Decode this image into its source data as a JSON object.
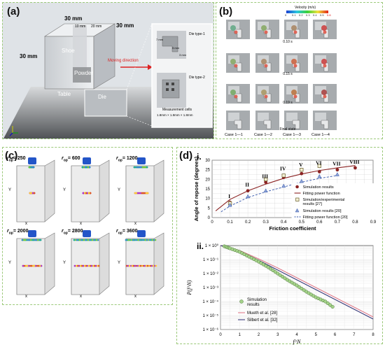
{
  "panel_a": {
    "label": "(a)",
    "dim_top": "30 mm",
    "dim_side": "30 mm",
    "dim_right": "30 mm",
    "dim_inner_a": "10 mm",
    "dim_inner_b": "20 mm",
    "shoe": "Shoe",
    "powder": "Powder",
    "table": "Table",
    "die": "Die",
    "moving": "Moving direction",
    "die_type1": "Die type-1",
    "die_type2": "Die type-2",
    "measurement": "Measurement cells",
    "measurement_size": "1.8mm × 1.8mm × 1.8mm",
    "inset_7mm": "7 mm",
    "inset_5mm": "5 mm",
    "inset_3mm": "3 mm"
  },
  "panel_b": {
    "label": "(b)",
    "colorbar_title": "Velocity (m/s)",
    "colorbar_ticks": [
      "0",
      "0.1",
      "0.2",
      "0.3",
      "0.4",
      "0.5",
      "0.6"
    ],
    "time_labels": [
      "0.10 s",
      "0.15 s",
      "0.19 s",
      "Final state"
    ],
    "cases": [
      "Case 1—1",
      "Case 1—2",
      "Case 1—3",
      "Case 1—4"
    ]
  },
  "panel_c": {
    "label": "(c)",
    "frames": [
      "r_op = 250",
      "r_op = 600",
      "r_op = 1200",
      "r_op = 2000",
      "r_op = 2800",
      "r_op = 3600"
    ],
    "frame_vals": [
      "250",
      "600",
      "1200",
      "2000",
      "2800",
      "3600"
    ],
    "axis_x": "x",
    "axis_y": "Y",
    "axis_z": "z"
  },
  "panel_d": {
    "label": "(d)",
    "sub_i": "i.",
    "sub_ii": "ii."
  },
  "chart_data": [
    {
      "type": "scatter",
      "xlabel": "Friction coefficient",
      "ylabel": "Angle of repose (degrees)",
      "xlim": [
        0,
        0.9
      ],
      "ylim": [
        0,
        30
      ],
      "xticks": [
        "0",
        "0.1",
        "0.2",
        "0.3",
        "0.4",
        "0.5",
        "0.6",
        "0.7",
        "0.8",
        "0.9"
      ],
      "yticks": [
        "0",
        "5",
        "10",
        "15",
        "20",
        "25",
        "30"
      ],
      "roman_labels": [
        "I",
        "II",
        "III",
        "IV",
        "V",
        "VI",
        "VII",
        "VIII"
      ],
      "series": [
        {
          "name": "Simulation results",
          "x": [
            0.1,
            0.2,
            0.3,
            0.4,
            0.5,
            0.6,
            0.7,
            0.8
          ],
          "y": [
            8,
            14,
            18.5,
            21,
            23,
            24,
            25,
            26
          ]
        },
        {
          "name": "Fitting power function",
          "x": [
            0.02,
            0.1,
            0.2,
            0.3,
            0.4,
            0.5,
            0.6,
            0.7,
            0.8
          ],
          "y": [
            3.5,
            9.5,
            14,
            17.5,
            20.5,
            22.8,
            24.6,
            26,
            27.2
          ]
        },
        {
          "name": "Simulation/experimental results [27]",
          "x": [
            0.1,
            0.3,
            0.4,
            0.5,
            0.6
          ],
          "y": [
            7.5,
            20,
            22,
            25,
            27
          ]
        },
        {
          "name": "Simulation results [20]",
          "x": [
            0.1,
            0.2,
            0.3,
            0.4,
            0.5,
            0.6,
            0.7
          ],
          "y": [
            6.5,
            11,
            14,
            16.5,
            19,
            21.5,
            22.5
          ]
        },
        {
          "name": "Fitting power function [20]",
          "x": [
            0.05,
            0.1,
            0.2,
            0.3,
            0.4,
            0.5,
            0.6,
            0.7
          ],
          "y": [
            3,
            6,
            10.5,
            13.5,
            16,
            18.5,
            20.5,
            22
          ]
        }
      ]
    },
    {
      "type": "scatter",
      "xlabel": "f^N",
      "ylabel": "P(f^N)",
      "xlim": [
        0,
        8
      ],
      "log_y": true,
      "xticks": [
        "0",
        "1",
        "2",
        "3",
        "4",
        "5",
        "6",
        "7",
        "8"
      ],
      "yticks": [
        "1 × 10⁰",
        "1 × 10⁻¹",
        "1 × 10⁻²",
        "1 × 10⁻³",
        "1 × 10⁻⁴",
        "1 × 10⁻⁵",
        "1 × 10⁻⁶"
      ],
      "series": [
        {
          "name": "Simulation results",
          "x": [
            0.2,
            0.5,
            1.0,
            1.5,
            2.0,
            2.5,
            3.0,
            3.5,
            4.0,
            4.5,
            5.0,
            5.5,
            6.0
          ],
          "log10_y": [
            -0.05,
            -0.2,
            -0.45,
            -0.8,
            -1.15,
            -1.55,
            -2.0,
            -2.45,
            -2.85,
            -3.3,
            -3.7,
            -4.0,
            -4.5
          ]
        },
        {
          "name": "Mueth et al. [28]",
          "x": [
            0,
            1,
            2,
            3,
            4,
            5,
            6,
            7,
            8
          ],
          "log10_y": [
            0,
            -0.35,
            -0.95,
            -1.6,
            -2.3,
            -3.0,
            -3.7,
            -4.4,
            -5.1
          ]
        },
        {
          "name": "Silbert et al. [32]",
          "x": [
            0,
            1,
            2,
            3,
            4,
            5,
            6,
            7,
            8
          ],
          "log10_y": [
            0,
            -0.4,
            -1.05,
            -1.75,
            -2.45,
            -3.15,
            -3.85,
            -4.55,
            -5.25
          ]
        }
      ]
    }
  ]
}
